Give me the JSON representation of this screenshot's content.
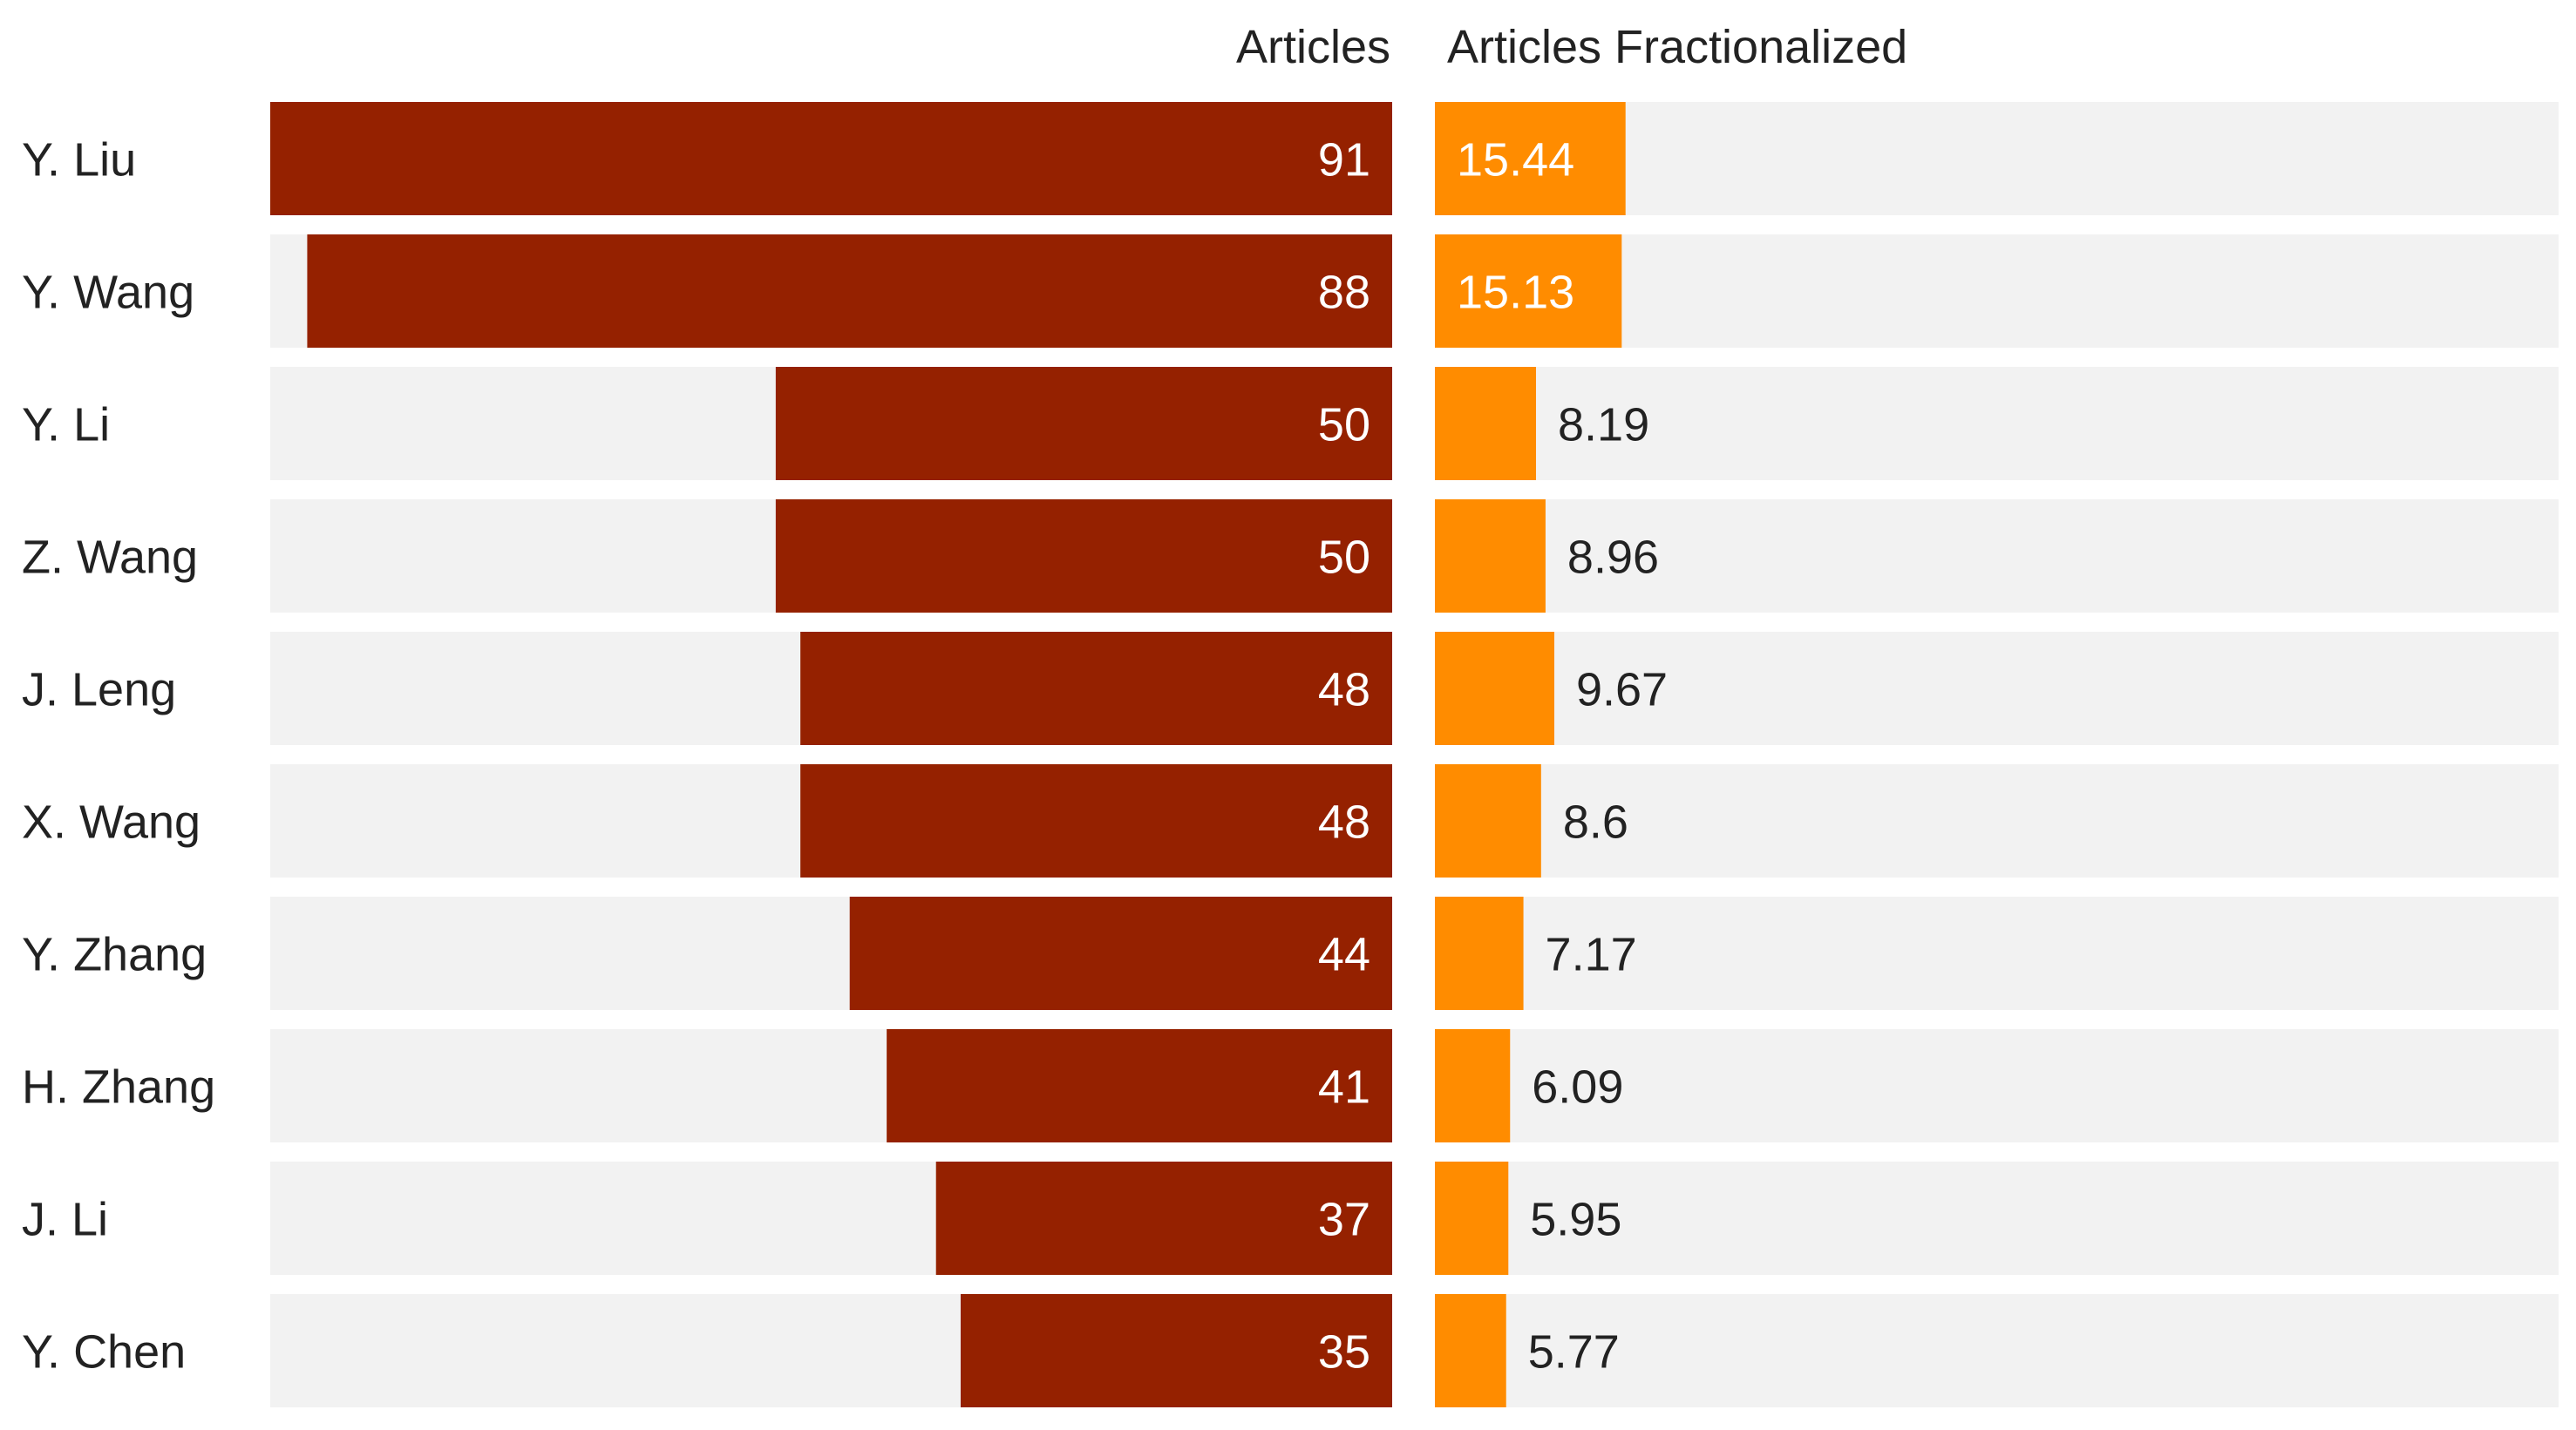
{
  "chart_data": {
    "type": "bar",
    "layout": "dual-bar-table",
    "categories": [
      "Y. Liu",
      "Y. Wang",
      "Y. Li",
      "Z. Wang",
      "J. Leng",
      "X. Wang",
      "Y. Zhang",
      "H. Zhang",
      "J. Li",
      "Y. Chen"
    ],
    "series": [
      {
        "name": "Articles",
        "values": [
          91,
          88,
          50,
          50,
          48,
          48,
          44,
          41,
          37,
          35
        ],
        "color": "#952100",
        "direction": "right-to-left",
        "max": 91
      },
      {
        "name": "Articles Fractionalized",
        "values": [
          15.44,
          15.13,
          8.19,
          8.96,
          9.67,
          8.6,
          7.17,
          6.09,
          5.95,
          5.77
        ],
        "labels": [
          "15.44",
          "15.13",
          "8.19",
          "8.96",
          "9.67",
          "8.6",
          "7.17",
          "6.09",
          "5.95",
          "5.77"
        ],
        "color": "#ff8c00",
        "direction": "left-to-right",
        "max": 91
      }
    ],
    "colors": {
      "row_background": "#f2f2f2",
      "label_text": "#222222",
      "value_text_inside": "#ffffff",
      "value_text_outside": "#222222"
    }
  }
}
